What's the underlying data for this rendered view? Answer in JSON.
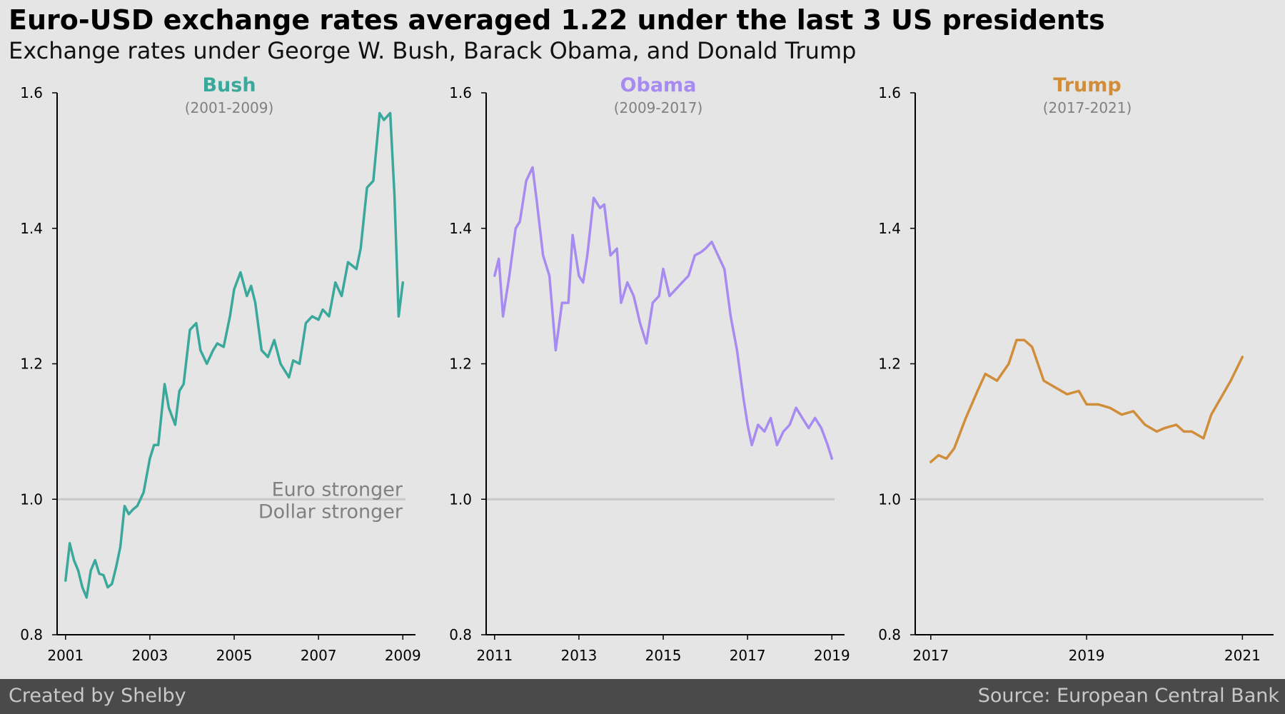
{
  "header": {
    "title": "Euro-USD exchange rates averaged 1.22 under the last 3 US presidents",
    "subtitle": "Exchange rates under George W. Bush, Barack Obama, and Donald Trump"
  },
  "footer": {
    "credit": "Created by Shelby",
    "source": "Source: European Central Bank"
  },
  "chart_data": [
    {
      "type": "line",
      "title": "Bush",
      "subtitle": "(2001-2009)",
      "color": "#3aa89a",
      "xlim": [
        2000.8,
        2009.3
      ],
      "ylim": [
        0.8,
        1.6
      ],
      "xticks": [
        "2001",
        "2003",
        "2005",
        "2007",
        "2009"
      ],
      "xtick_values": [
        2001,
        2003,
        2005,
        2007,
        2009
      ],
      "yticks": [
        "0.8",
        "1.0",
        "1.2",
        "1.4",
        "1.6"
      ],
      "ytick_values": [
        0.8,
        1.0,
        1.2,
        1.4,
        1.6
      ],
      "reference_line": 1.0,
      "annotations": [
        "Euro stronger",
        "Dollar stronger"
      ],
      "x": [
        2001.0,
        2001.1,
        2001.2,
        2001.3,
        2001.4,
        2001.5,
        2001.6,
        2001.7,
        2001.8,
        2001.9,
        2002.0,
        2002.1,
        2002.2,
        2002.3,
        2002.4,
        2002.5,
        2002.6,
        2002.7,
        2002.85,
        2003.0,
        2003.1,
        2003.2,
        2003.35,
        2003.45,
        2003.6,
        2003.7,
        2003.8,
        2003.95,
        2004.1,
        2004.2,
        2004.35,
        2004.5,
        2004.6,
        2004.75,
        2004.9,
        2005.0,
        2005.15,
        2005.3,
        2005.4,
        2005.5,
        2005.65,
        2005.8,
        2005.95,
        2006.1,
        2006.3,
        2006.4,
        2006.55,
        2006.7,
        2006.85,
        2007.0,
        2007.1,
        2007.25,
        2007.4,
        2007.55,
        2007.7,
        2007.9,
        2008.0,
        2008.15,
        2008.3,
        2008.45,
        2008.55,
        2008.7,
        2008.8,
        2008.9,
        2009.0
      ],
      "y": [
        0.88,
        0.935,
        0.91,
        0.895,
        0.87,
        0.855,
        0.895,
        0.91,
        0.89,
        0.888,
        0.87,
        0.875,
        0.9,
        0.93,
        0.99,
        0.978,
        0.985,
        0.99,
        1.01,
        1.06,
        1.08,
        1.08,
        1.17,
        1.135,
        1.11,
        1.16,
        1.17,
        1.25,
        1.26,
        1.22,
        1.2,
        1.22,
        1.23,
        1.225,
        1.27,
        1.31,
        1.335,
        1.3,
        1.315,
        1.29,
        1.22,
        1.21,
        1.235,
        1.2,
        1.18,
        1.205,
        1.2,
        1.26,
        1.27,
        1.265,
        1.28,
        1.27,
        1.32,
        1.3,
        1.35,
        1.34,
        1.37,
        1.46,
        1.47,
        1.57,
        1.56,
        1.57,
        1.45,
        1.27,
        1.32
      ]
    },
    {
      "type": "line",
      "title": "Obama",
      "subtitle": "(2009-2017)",
      "color": "#a78bf0",
      "xlim": [
        2010.8,
        2019.3
      ],
      "ylim": [
        0.8,
        1.6
      ],
      "xticks": [
        "2011",
        "2013",
        "2015",
        "2017",
        "2019"
      ],
      "xtick_values": [
        2011,
        2013,
        2015,
        2017,
        2019
      ],
      "yticks": [
        "0.8",
        "1.0",
        "1.2",
        "1.4",
        "1.6"
      ],
      "ytick_values": [
        0.8,
        1.0,
        1.2,
        1.4,
        1.6
      ],
      "reference_line": 1.0,
      "x": [
        2011.0,
        2011.1,
        2011.2,
        2011.35,
        2011.5,
        2011.6,
        2011.75,
        2011.9,
        2012.0,
        2012.15,
        2012.3,
        2012.45,
        2012.6,
        2012.75,
        2012.85,
        2013.0,
        2013.1,
        2013.2,
        2013.35,
        2013.5,
        2013.6,
        2013.75,
        2013.9,
        2014.0,
        2014.15,
        2014.3,
        2014.45,
        2014.6,
        2014.75,
        2014.9,
        2015.0,
        2015.15,
        2015.3,
        2015.45,
        2015.6,
        2015.75,
        2015.9,
        2016.0,
        2016.15,
        2016.3,
        2016.45,
        2016.6,
        2016.75,
        2016.9,
        2017.0,
        2017.1,
        2017.25,
        2017.4,
        2017.55,
        2017.7,
        2017.85,
        2018.0,
        2018.15,
        2018.3,
        2018.45,
        2018.6,
        2018.75,
        2018.9,
        2019.0
      ],
      "y": [
        1.33,
        1.355,
        1.27,
        1.33,
        1.4,
        1.41,
        1.47,
        1.49,
        1.44,
        1.36,
        1.33,
        1.22,
        1.29,
        1.29,
        1.39,
        1.33,
        1.32,
        1.36,
        1.445,
        1.43,
        1.435,
        1.36,
        1.37,
        1.29,
        1.32,
        1.3,
        1.26,
        1.23,
        1.29,
        1.3,
        1.34,
        1.3,
        1.31,
        1.32,
        1.33,
        1.36,
        1.365,
        1.37,
        1.38,
        1.36,
        1.34,
        1.27,
        1.22,
        1.15,
        1.11,
        1.08,
        1.11,
        1.1,
        1.12,
        1.08,
        1.1,
        1.11,
        1.135,
        1.12,
        1.105,
        1.12,
        1.105,
        1.08,
        1.06
      ]
    },
    {
      "type": "line",
      "title": "Trump",
      "subtitle": "(2017-2021)",
      "color": "#d18e3a",
      "xlim": [
        2016.8,
        2021.4
      ],
      "ylim": [
        0.8,
        1.6
      ],
      "xticks": [
        "2017",
        "2019",
        "2021"
      ],
      "xtick_values": [
        2017,
        2019,
        2021
      ],
      "yticks": [
        "0.8",
        "1.0",
        "1.2",
        "1.4",
        "1.6"
      ],
      "ytick_values": [
        0.8,
        1.0,
        1.2,
        1.4,
        1.6
      ],
      "reference_line": 1.0,
      "x": [
        2017.0,
        2017.1,
        2017.2,
        2017.3,
        2017.45,
        2017.6,
        2017.7,
        2017.85,
        2018.0,
        2018.1,
        2018.2,
        2018.3,
        2018.45,
        2018.6,
        2018.75,
        2018.9,
        2019.0,
        2019.15,
        2019.3,
        2019.45,
        2019.6,
        2019.75,
        2019.9,
        2020.0,
        2020.15,
        2020.25,
        2020.35,
        2020.5,
        2020.6,
        2020.7,
        2020.85,
        2021.0
      ],
      "y": [
        1.055,
        1.065,
        1.06,
        1.075,
        1.12,
        1.16,
        1.185,
        1.175,
        1.2,
        1.235,
        1.235,
        1.225,
        1.175,
        1.165,
        1.155,
        1.16,
        1.14,
        1.14,
        1.135,
        1.125,
        1.13,
        1.11,
        1.1,
        1.105,
        1.11,
        1.1,
        1.1,
        1.09,
        1.125,
        1.145,
        1.175,
        1.21
      ]
    }
  ]
}
